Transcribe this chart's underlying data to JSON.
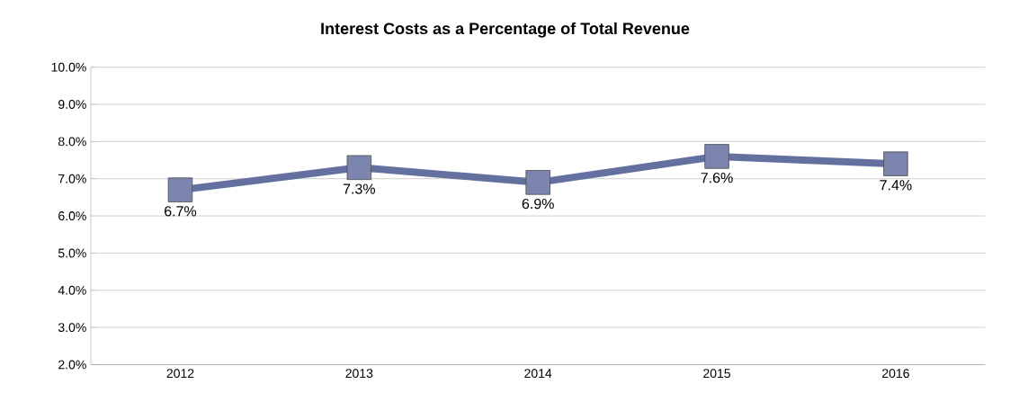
{
  "chart_data": {
    "type": "line",
    "title": "Interest Costs as a Percentage of Total Revenue",
    "categories": [
      "2012",
      "2013",
      "2014",
      "2015",
      "2016"
    ],
    "values": [
      6.7,
      7.3,
      6.9,
      7.6,
      7.4
    ],
    "value_labels": [
      "6.7%",
      "7.3%",
      "6.9%",
      "7.6%",
      "7.4%"
    ],
    "color": "#6470a0",
    "ylim": [
      2,
      10
    ],
    "yticks": [
      {
        "value": 2,
        "label": "2.0%"
      },
      {
        "value": 3,
        "label": "3.0%"
      },
      {
        "value": 4,
        "label": "4.0%"
      },
      {
        "value": 5,
        "label": "5.0%"
      },
      {
        "value": 6,
        "label": "6.0%"
      },
      {
        "value": 7,
        "label": "7.0%"
      },
      {
        "value": 8,
        "label": "8.0%"
      },
      {
        "value": 9,
        "label": "9.0%"
      },
      {
        "value": 10,
        "label": "10.0%"
      }
    ],
    "grid": "y",
    "marker": "square",
    "line_style": "solid"
  }
}
